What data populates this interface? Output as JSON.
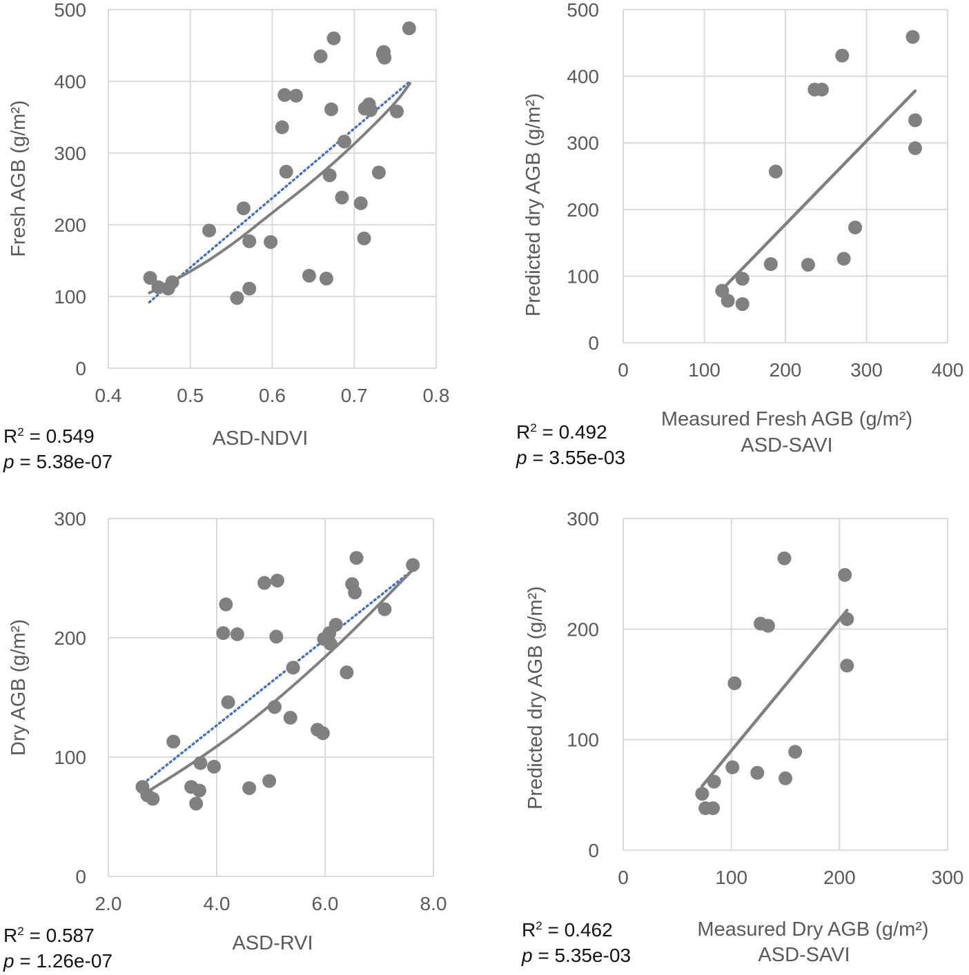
{
  "chart_data": [
    {
      "type": "scatter",
      "xlabel": "ASD-NDVI",
      "ylabel": "Fresh AGB (g/m²)",
      "xlim": [
        0.4,
        0.8
      ],
      "ylim": [
        0,
        500
      ],
      "x_ticks": [
        "0.4",
        "0.5",
        "0.6",
        "0.7",
        "0.8"
      ],
      "y_ticks": [
        "0",
        "100",
        "200",
        "300",
        "400",
        "500"
      ],
      "grid": true,
      "r2_label": "R",
      "r2_value": " = 0.549",
      "p_label": "p",
      "p_value": " = 5.38e-07",
      "points": [
        [
          0.451,
          126
        ],
        [
          0.461,
          113
        ],
        [
          0.473,
          111
        ],
        [
          0.478,
          120
        ],
        [
          0.523,
          192
        ],
        [
          0.557,
          98
        ],
        [
          0.565,
          223
        ],
        [
          0.572,
          177
        ],
        [
          0.572,
          111
        ],
        [
          0.598,
          176
        ],
        [
          0.612,
          336
        ],
        [
          0.615,
          381
        ],
        [
          0.617,
          274
        ],
        [
          0.629,
          380
        ],
        [
          0.645,
          129
        ],
        [
          0.659,
          435
        ],
        [
          0.666,
          125
        ],
        [
          0.67,
          269
        ],
        [
          0.672,
          361
        ],
        [
          0.675,
          460
        ],
        [
          0.685,
          238
        ],
        [
          0.688,
          316
        ],
        [
          0.708,
          230
        ],
        [
          0.712,
          181
        ],
        [
          0.713,
          362
        ],
        [
          0.718,
          368
        ],
        [
          0.72,
          360
        ],
        [
          0.73,
          273
        ],
        [
          0.735,
          438
        ],
        [
          0.736,
          441
        ],
        [
          0.737,
          433
        ],
        [
          0.752,
          358
        ],
        [
          0.767,
          474
        ]
      ],
      "fit_curve": [
        [
          0.45,
          105
        ],
        [
          0.5,
          134
        ],
        [
          0.55,
          171
        ],
        [
          0.6,
          217
        ],
        [
          0.65,
          261
        ],
        [
          0.7,
          312
        ],
        [
          0.75,
          369
        ],
        [
          0.768,
          397
        ]
      ],
      "fit_line": [
        [
          0.45,
          92
        ],
        [
          0.768,
          400
        ]
      ]
    },
    {
      "type": "scatter",
      "xlabel": "Measured Fresh AGB (g/m²)",
      "xlabel2": "ASD-SAVI",
      "ylabel": "Predicted dry AGB (g/m²)",
      "xlim": [
        0,
        400
      ],
      "ylim": [
        0,
        500
      ],
      "x_ticks": [
        "0",
        "100",
        "200",
        "300",
        "400"
      ],
      "y_ticks": [
        "0",
        "100",
        "200",
        "300",
        "400",
        "500"
      ],
      "grid": true,
      "r2_label": "R",
      "r2_value": " = 0.492",
      "p_label": "p",
      "p_value": " = 3.55e-03",
      "points": [
        [
          122,
          78
        ],
        [
          129,
          63
        ],
        [
          147,
          96
        ],
        [
          147,
          58
        ],
        [
          182,
          118
        ],
        [
          188,
          257
        ],
        [
          228,
          117
        ],
        [
          236,
          380
        ],
        [
          245,
          380
        ],
        [
          270,
          431
        ],
        [
          272,
          126
        ],
        [
          286,
          173
        ],
        [
          357,
          459
        ],
        [
          360,
          334
        ],
        [
          360,
          292
        ]
      ],
      "fit_line": [
        [
          122,
          80
        ],
        [
          360,
          378
        ]
      ]
    },
    {
      "type": "scatter",
      "xlabel": "ASD-RVI",
      "ylabel": "Dry AGB (g/m²)",
      "xlim": [
        2.0,
        8.0
      ],
      "ylim": [
        0,
        300
      ],
      "x_ticks": [
        "2.0",
        "4.0",
        "6.0",
        "8.0"
      ],
      "y_ticks": [
        "0",
        "100",
        "200",
        "300"
      ],
      "grid": true,
      "r2_label": "R",
      "r2_value": " = 0.587",
      "p_label": "p",
      "p_value": " = 1.26e-07",
      "points": [
        [
          2.63,
          75
        ],
        [
          2.72,
          68
        ],
        [
          2.82,
          65
        ],
        [
          3.2,
          113
        ],
        [
          3.53,
          75
        ],
        [
          3.62,
          61
        ],
        [
          3.68,
          72
        ],
        [
          3.7,
          95
        ],
        [
          3.95,
          92
        ],
        [
          4.12,
          204
        ],
        [
          4.17,
          228
        ],
        [
          4.21,
          146
        ],
        [
          4.38,
          203
        ],
        [
          4.6,
          74
        ],
        [
          4.88,
          246
        ],
        [
          4.97,
          80
        ],
        [
          5.07,
          142
        ],
        [
          5.1,
          201
        ],
        [
          5.12,
          248
        ],
        [
          5.36,
          133
        ],
        [
          5.41,
          175
        ],
        [
          5.86,
          123
        ],
        [
          5.96,
          120
        ],
        [
          5.98,
          199
        ],
        [
          6.08,
          204
        ],
        [
          6.1,
          195
        ],
        [
          6.2,
          211
        ],
        [
          6.4,
          171
        ],
        [
          6.5,
          245
        ],
        [
          6.55,
          238
        ],
        [
          6.58,
          267
        ],
        [
          7.1,
          224
        ],
        [
          7.62,
          261
        ]
      ],
      "fit_curve": [
        [
          2.65,
          69
        ],
        [
          3.5,
          93
        ],
        [
          4.5,
          125
        ],
        [
          5.5,
          163
        ],
        [
          6.5,
          205
        ],
        [
          7.62,
          257
        ]
      ],
      "fit_line": [
        [
          2.65,
          78
        ],
        [
          7.62,
          257
        ]
      ]
    },
    {
      "type": "scatter",
      "xlabel": "Measured Dry AGB (g/m²)",
      "xlabel2": "ASD-SAVI",
      "ylabel": "Predicted dry AGB (g/m²)",
      "xlim": [
        0,
        300
      ],
      "ylim": [
        0,
        300
      ],
      "x_ticks": [
        "0",
        "100",
        "200",
        "300"
      ],
      "y_ticks": [
        "0",
        "100",
        "200",
        "300"
      ],
      "grid": true,
      "r2_label": "R",
      "r2_value": " = 0.462",
      "p_label": "p",
      "p_value": " = 5.35e-03",
      "points": [
        [
          73,
          51
        ],
        [
          76,
          38
        ],
        [
          83,
          38
        ],
        [
          84,
          62
        ],
        [
          101,
          75
        ],
        [
          103,
          151
        ],
        [
          124,
          70
        ],
        [
          127,
          205
        ],
        [
          134,
          203
        ],
        [
          149,
          264
        ],
        [
          150,
          65
        ],
        [
          159,
          89
        ],
        [
          205,
          249
        ],
        [
          207,
          209
        ],
        [
          207,
          167
        ]
      ],
      "fit_line": [
        [
          73,
          58
        ],
        [
          207,
          217
        ]
      ]
    }
  ]
}
